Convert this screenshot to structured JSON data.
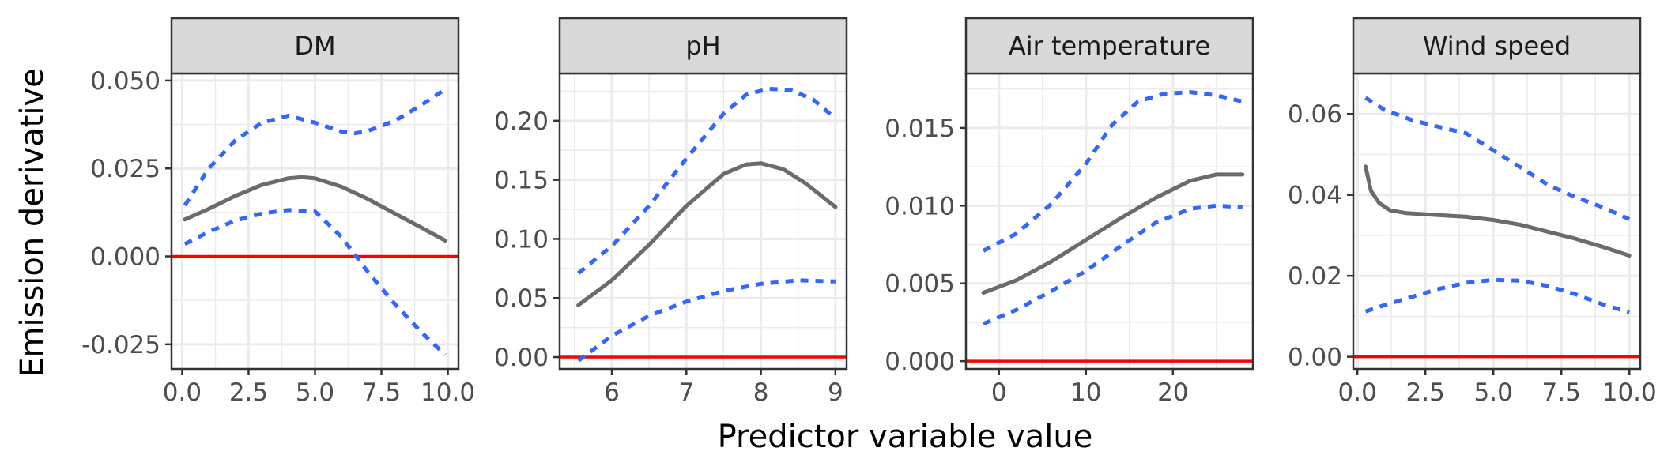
{
  "chart_data": {
    "type": "line",
    "xlabel": "Predictor variable value",
    "ylabel": "Emission derivative",
    "grid": true,
    "colors": {
      "estimate": "#6b6b6b",
      "ci": "#3366ff",
      "zero": "#ff0000"
    },
    "panels": [
      {
        "title": "DM",
        "xlim": [
          -0.4,
          10.4
        ],
        "ylim": [
          -0.032,
          0.052
        ],
        "xticks": [
          0,
          2.5,
          5,
          7.5,
          10
        ],
        "xtick_labels": [
          "0.0",
          "2.5",
          "5.0",
          "7.5",
          "10.0"
        ],
        "yticks": [
          -0.025,
          0,
          0.025,
          0.05
        ],
        "ytick_labels": [
          "-0.025",
          "0.000",
          "0.025",
          "0.050"
        ],
        "series": [
          {
            "name": "",
            "role": "estimate",
            "x": [
              0.1,
              1,
              2,
              3,
              4,
              4.5,
              5,
              6,
              7,
              8,
              9,
              9.9
            ],
            "values": [
              0.0105,
              0.0135,
              0.0172,
              0.0203,
              0.0222,
              0.0225,
              0.0222,
              0.0198,
              0.0163,
              0.0122,
              0.0082,
              0.0045
            ]
          },
          {
            "name": "",
            "role": "upper",
            "x": [
              0.1,
              1,
              2,
              3,
              4,
              5,
              6,
              6.5,
              7,
              8,
              9,
              9.9
            ],
            "values": [
              0.0145,
              0.025,
              0.033,
              0.038,
              0.04,
              0.038,
              0.0355,
              0.035,
              0.0357,
              0.0385,
              0.043,
              0.0475
            ]
          },
          {
            "name": "",
            "role": "lower",
            "x": [
              0.1,
              1,
              2,
              3,
              4,
              5,
              6,
              7,
              8,
              9,
              9.9
            ],
            "values": [
              0.0035,
              0.007,
              0.0102,
              0.0122,
              0.0132,
              0.0128,
              0.0055,
              -0.0045,
              -0.0135,
              -0.0215,
              -0.028
            ]
          }
        ]
      },
      {
        "title": "pH",
        "xlim": [
          5.3,
          9.15
        ],
        "ylim": [
          -0.01,
          0.24
        ],
        "xticks": [
          6,
          7,
          8,
          9
        ],
        "xtick_labels": [
          "6",
          "7",
          "8",
          "9"
        ],
        "yticks": [
          0,
          0.05,
          0.1,
          0.15,
          0.2
        ],
        "ytick_labels": [
          "0.00",
          "0.05",
          "0.10",
          "0.15",
          "0.20"
        ],
        "series": [
          {
            "name": "",
            "role": "estimate",
            "x": [
              5.55,
              6,
              6.5,
              7,
              7.5,
              7.8,
              8,
              8.3,
              8.6,
              9
            ],
            "values": [
              0.044,
              0.065,
              0.095,
              0.128,
              0.155,
              0.163,
              0.164,
              0.159,
              0.147,
              0.127
            ]
          },
          {
            "name": "",
            "role": "upper",
            "x": [
              5.55,
              6,
              6.5,
              7,
              7.5,
              7.8,
              8.1,
              8.4,
              8.7,
              9
            ],
            "values": [
              0.071,
              0.094,
              0.128,
              0.168,
              0.206,
              0.222,
              0.227,
              0.226,
              0.218,
              0.202
            ]
          },
          {
            "name": "",
            "role": "lower",
            "x": [
              5.55,
              6,
              6.5,
              7,
              7.5,
              8,
              8.5,
              9
            ],
            "values": [
              -0.003,
              0.018,
              0.035,
              0.047,
              0.056,
              0.062,
              0.065,
              0.064
            ]
          }
        ]
      },
      {
        "title": "Air temperature",
        "xlim": [
          -3.8,
          29.2
        ],
        "ylim": [
          -0.0005,
          0.0185
        ],
        "xticks": [
          0,
          10,
          20
        ],
        "xtick_labels": [
          "0",
          "10",
          "20"
        ],
        "yticks": [
          0,
          0.005,
          0.01,
          0.015
        ],
        "ytick_labels": [
          "0.000",
          "0.005",
          "0.010",
          "0.015"
        ],
        "series": [
          {
            "name": "",
            "role": "estimate",
            "x": [
              -1.8,
              2,
              6,
              10,
              14,
              18,
              22,
              25,
              28
            ],
            "values": [
              0.0044,
              0.0052,
              0.0064,
              0.0078,
              0.0092,
              0.0105,
              0.0116,
              0.012,
              0.012
            ]
          },
          {
            "name": "",
            "role": "upper",
            "x": [
              -1.8,
              2,
              6,
              10,
              13,
              16,
              19,
              22,
              25,
              28
            ],
            "values": [
              0.0071,
              0.0082,
              0.0101,
              0.0127,
              0.0152,
              0.0167,
              0.0172,
              0.0173,
              0.0171,
              0.0167
            ]
          },
          {
            "name": "",
            "role": "lower",
            "x": [
              -1.8,
              2,
              6,
              10,
              14,
              18,
              22,
              25,
              28
            ],
            "values": [
              0.0024,
              0.0033,
              0.0045,
              0.0058,
              0.0074,
              0.0089,
              0.0098,
              0.01,
              0.0099
            ]
          }
        ]
      },
      {
        "title": "Wind speed",
        "xlim": [
          -0.15,
          10.4
        ],
        "ylim": [
          -0.003,
          0.07
        ],
        "xticks": [
          0,
          2.5,
          5,
          7.5,
          10
        ],
        "xtick_labels": [
          "0.0",
          "2.5",
          "5.0",
          "7.5",
          "10.0"
        ],
        "yticks": [
          0,
          0.02,
          0.04,
          0.06
        ],
        "ytick_labels": [
          "0.00",
          "0.02",
          "0.04",
          "0.06"
        ],
        "series": [
          {
            "name": "",
            "role": "estimate",
            "x": [
              0.3,
              0.5,
              0.8,
              1.2,
              1.8,
              2.5,
              4,
              5,
              6,
              7,
              8,
              9,
              10
            ],
            "values": [
              0.047,
              0.041,
              0.038,
              0.0362,
              0.0355,
              0.0352,
              0.0346,
              0.0338,
              0.0326,
              0.0309,
              0.0292,
              0.0272,
              0.025
            ]
          },
          {
            "name": "",
            "role": "upper",
            "x": [
              0.3,
              1,
              2,
              3,
              4,
              5,
              6,
              7,
              8,
              9,
              10
            ],
            "values": [
              0.064,
              0.061,
              0.0585,
              0.0568,
              0.0552,
              0.051,
              0.0468,
              0.0425,
              0.0395,
              0.037,
              0.034
            ]
          },
          {
            "name": "",
            "role": "lower",
            "x": [
              0.3,
              1,
              2,
              3,
              4,
              5,
              6,
              7,
              8,
              9,
              10
            ],
            "values": [
              0.0112,
              0.0128,
              0.0148,
              0.0168,
              0.0183,
              0.019,
              0.0188,
              0.0175,
              0.0155,
              0.013,
              0.011
            ]
          }
        ]
      }
    ]
  }
}
